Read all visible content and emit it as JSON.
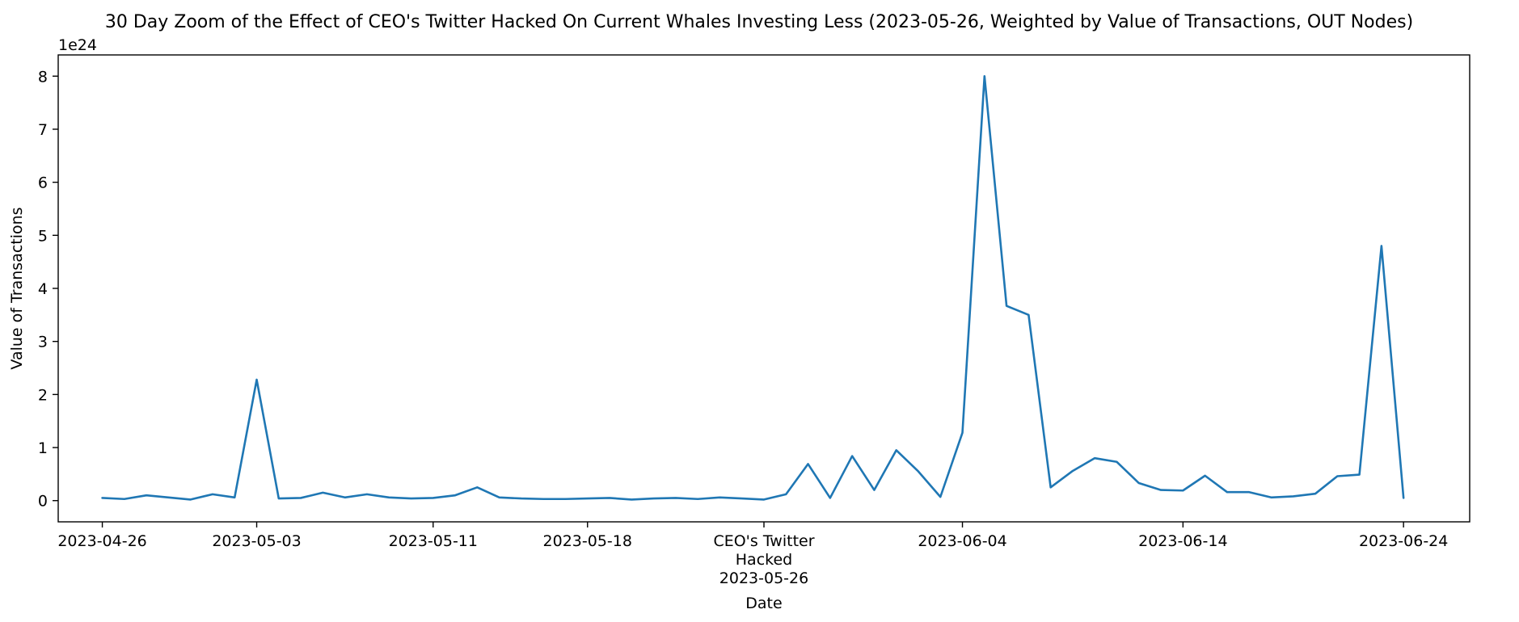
{
  "chart_data": {
    "type": "line",
    "title": "30 Day Zoom of the Effect of CEO's Twitter Hacked On Current Whales Investing Less (2023-05-26, Weighted by Value of Transactions, OUT Nodes)",
    "xlabel": "Date",
    "ylabel": "Value of Transactions",
    "y_scale_label": "1e24",
    "y_multiplier": 1e+24,
    "xlim": [
      "2023-04-24",
      "2023-06-27"
    ],
    "ylim": [
      -0.4,
      8.4
    ],
    "y_ticks": [
      0,
      1,
      2,
      3,
      4,
      5,
      6,
      7,
      8
    ],
    "x_ticks": [
      {
        "date": "2023-04-26",
        "label": "2023-04-26"
      },
      {
        "date": "2023-05-03",
        "label": "2023-05-03"
      },
      {
        "date": "2023-05-11",
        "label": "2023-05-11"
      },
      {
        "date": "2023-05-18",
        "label": "2023-05-18"
      },
      {
        "date": "2023-05-26",
        "label": "CEO's Twitter\nHacked\n2023-05-26"
      },
      {
        "date": "2023-06-04",
        "label": "2023-06-04"
      },
      {
        "date": "2023-06-14",
        "label": "2023-06-14"
      },
      {
        "date": "2023-06-24",
        "label": "2023-06-24"
      }
    ],
    "grid": false,
    "legend": "none",
    "series": [
      {
        "color": "#1f77b4",
        "x": [
          "2023-04-26",
          "2023-04-27",
          "2023-04-28",
          "2023-04-29",
          "2023-04-30",
          "2023-05-01",
          "2023-05-02",
          "2023-05-03",
          "2023-05-04",
          "2023-05-05",
          "2023-05-06",
          "2023-05-07",
          "2023-05-08",
          "2023-05-09",
          "2023-05-10",
          "2023-05-11",
          "2023-05-12",
          "2023-05-13",
          "2023-05-14",
          "2023-05-15",
          "2023-05-16",
          "2023-05-17",
          "2023-05-18",
          "2023-05-19",
          "2023-05-20",
          "2023-05-21",
          "2023-05-22",
          "2023-05-23",
          "2023-05-24",
          "2023-05-25",
          "2023-05-26",
          "2023-05-27",
          "2023-05-28",
          "2023-05-29",
          "2023-05-30",
          "2023-05-31",
          "2023-06-01",
          "2023-06-02",
          "2023-06-03",
          "2023-06-04",
          "2023-06-05",
          "2023-06-06",
          "2023-06-07",
          "2023-06-08",
          "2023-06-09",
          "2023-06-10",
          "2023-06-11",
          "2023-06-12",
          "2023-06-13",
          "2023-06-14",
          "2023-06-15",
          "2023-06-16",
          "2023-06-17",
          "2023-06-18",
          "2023-06-19",
          "2023-06-20",
          "2023-06-21",
          "2023-06-22",
          "2023-06-23",
          "2023-06-24"
        ],
        "y": [
          0.05,
          0.03,
          0.1,
          0.06,
          0.02,
          0.12,
          0.06,
          2.28,
          0.04,
          0.05,
          0.15,
          0.06,
          0.12,
          0.06,
          0.04,
          0.05,
          0.1,
          0.25,
          0.06,
          0.04,
          0.03,
          0.03,
          0.04,
          0.05,
          0.02,
          0.04,
          0.05,
          0.03,
          0.06,
          0.04,
          0.02,
          0.12,
          0.69,
          0.05,
          0.84,
          0.2,
          0.95,
          0.55,
          0.07,
          1.28,
          8.0,
          3.67,
          3.5,
          0.25,
          0.56,
          0.8,
          0.73,
          0.33,
          0.2,
          0.19,
          0.47,
          0.16,
          0.16,
          0.06,
          0.08,
          0.13,
          0.46,
          0.49,
          4.8,
          0.05
        ]
      }
    ]
  }
}
